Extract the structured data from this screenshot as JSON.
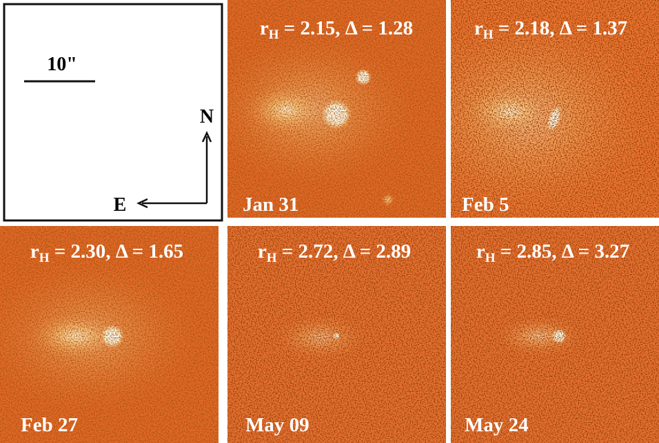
{
  "key": {
    "scale_label": "10\"",
    "north": "N",
    "east": "E"
  },
  "panels": [
    {
      "r": "r",
      "sub": "H",
      "rh_label": " = 2.15, ",
      "delta_label": "Δ = 1.28",
      "date": "Jan 31"
    },
    {
      "r": "r",
      "sub": "H",
      "rh_label": " = 2.18, ",
      "delta_label": "Δ = 1.37",
      "date": "Feb 5"
    },
    {
      "r": "r",
      "sub": "H",
      "rh_label": " = 2.30, ",
      "delta_label": "Δ = 1.65",
      "date": "Feb 27"
    },
    {
      "r": "r",
      "sub": "H",
      "rh_label": " = 2.72, ",
      "delta_label": "Δ = 2.89",
      "date": "May 09"
    },
    {
      "r": "r",
      "sub": "H",
      "rh_label": " = 2.85, ",
      "delta_label": "Δ = 3.27",
      "date": "May 24"
    }
  ]
}
